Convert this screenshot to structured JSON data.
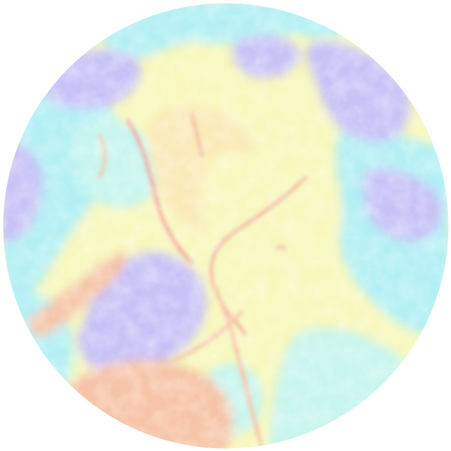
{
  "map": {
    "projection": "polar",
    "shape": "circle",
    "background": "#ffffff",
    "colors": {
      "deep_low": "#c8c3f7",
      "low": "#b3f0f5",
      "mid_low": "#c8f5ee",
      "mid": "#f8f8bd",
      "mid_high": "#fbeab8",
      "high": "#f6c4a8",
      "ridge": "#f2a7a0"
    }
  }
}
